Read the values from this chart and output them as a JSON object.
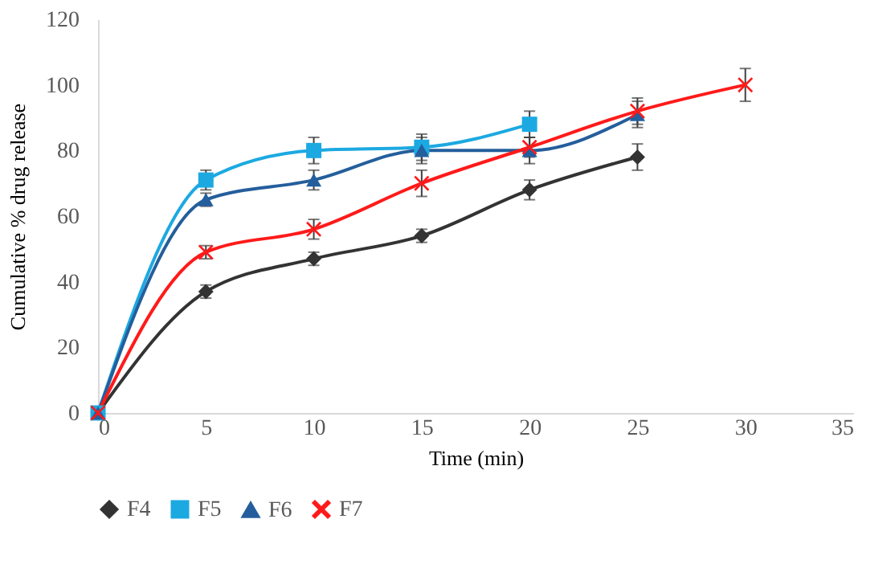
{
  "chart_data": {
    "type": "line",
    "xlabel": "Time  (min)",
    "ylabel": "Cumulative  % drug release",
    "xlim": [
      0,
      35
    ],
    "xticks": [
      0,
      5,
      10,
      15,
      20,
      25,
      30,
      35
    ],
    "ylim": [
      0,
      120
    ],
    "yticks": [
      0,
      20,
      40,
      60,
      80,
      100,
      120
    ],
    "grid": false,
    "legend": "bottom",
    "line_style": "solid",
    "series": [
      {
        "name": "F4",
        "color": "#333333",
        "marker": "diamond",
        "x": [
          0,
          5,
          10,
          15,
          20,
          25
        ],
        "values": [
          0,
          37,
          47,
          54,
          68,
          78
        ],
        "errors": [
          1,
          2,
          2,
          2,
          3,
          4
        ]
      },
      {
        "name": "F5",
        "color": "#1ca9e1",
        "marker": "square",
        "x": [
          0,
          5,
          10,
          15,
          20
        ],
        "values": [
          0,
          71,
          80,
          81,
          88
        ],
        "errors": [
          1,
          3,
          4,
          4,
          4
        ]
      },
      {
        "name": "F6",
        "color": "#245e9c",
        "marker": "triangle",
        "x": [
          0,
          5,
          10,
          15,
          20,
          25
        ],
        "values": [
          0,
          65,
          71,
          80,
          80,
          91
        ],
        "errors": [
          1,
          2,
          3,
          4,
          4,
          4
        ]
      },
      {
        "name": "F7",
        "color": "#ff1a1a",
        "marker": "cross",
        "x": [
          0,
          5,
          10,
          15,
          20,
          25,
          30
        ],
        "values": [
          0,
          49,
          56,
          70,
          81,
          92,
          100
        ],
        "errors": [
          1,
          2,
          3,
          4,
          3,
          4,
          5
        ]
      }
    ]
  }
}
